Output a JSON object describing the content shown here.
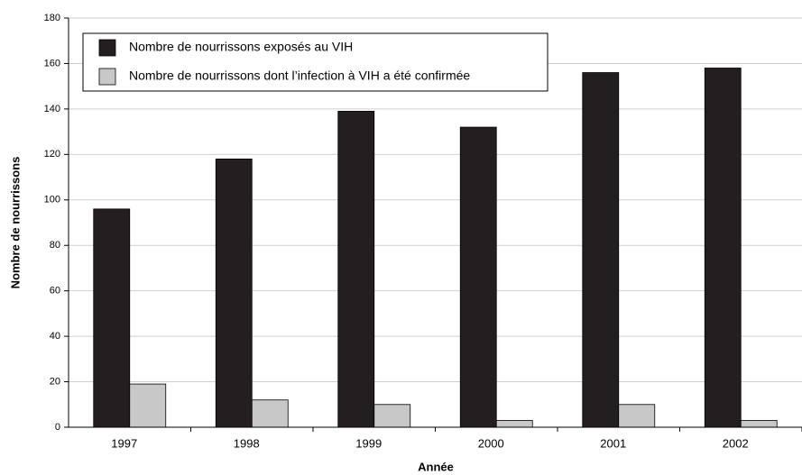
{
  "chart_data": {
    "type": "bar",
    "xlabel": "Année",
    "ylabel": "Nombre de nourrissons",
    "categories": [
      "1997",
      "1998",
      "1999",
      "2000",
      "2001",
      "2002"
    ],
    "series": [
      {
        "name": "Nombre de nourrissons exposés au VIH",
        "color": "#231f20",
        "values": [
          96,
          118,
          139,
          132,
          156,
          158
        ]
      },
      {
        "name": "Nombre de nourrissons dont l’infection à VIH a été confirmée",
        "color": "#c8c8c8",
        "values": [
          19,
          12,
          10,
          3,
          10,
          3
        ]
      }
    ],
    "ylim": [
      0,
      180
    ],
    "yticks": [
      0,
      20,
      40,
      60,
      80,
      100,
      120,
      140,
      160,
      180
    ],
    "grid": true,
    "legend": "upper left"
  }
}
